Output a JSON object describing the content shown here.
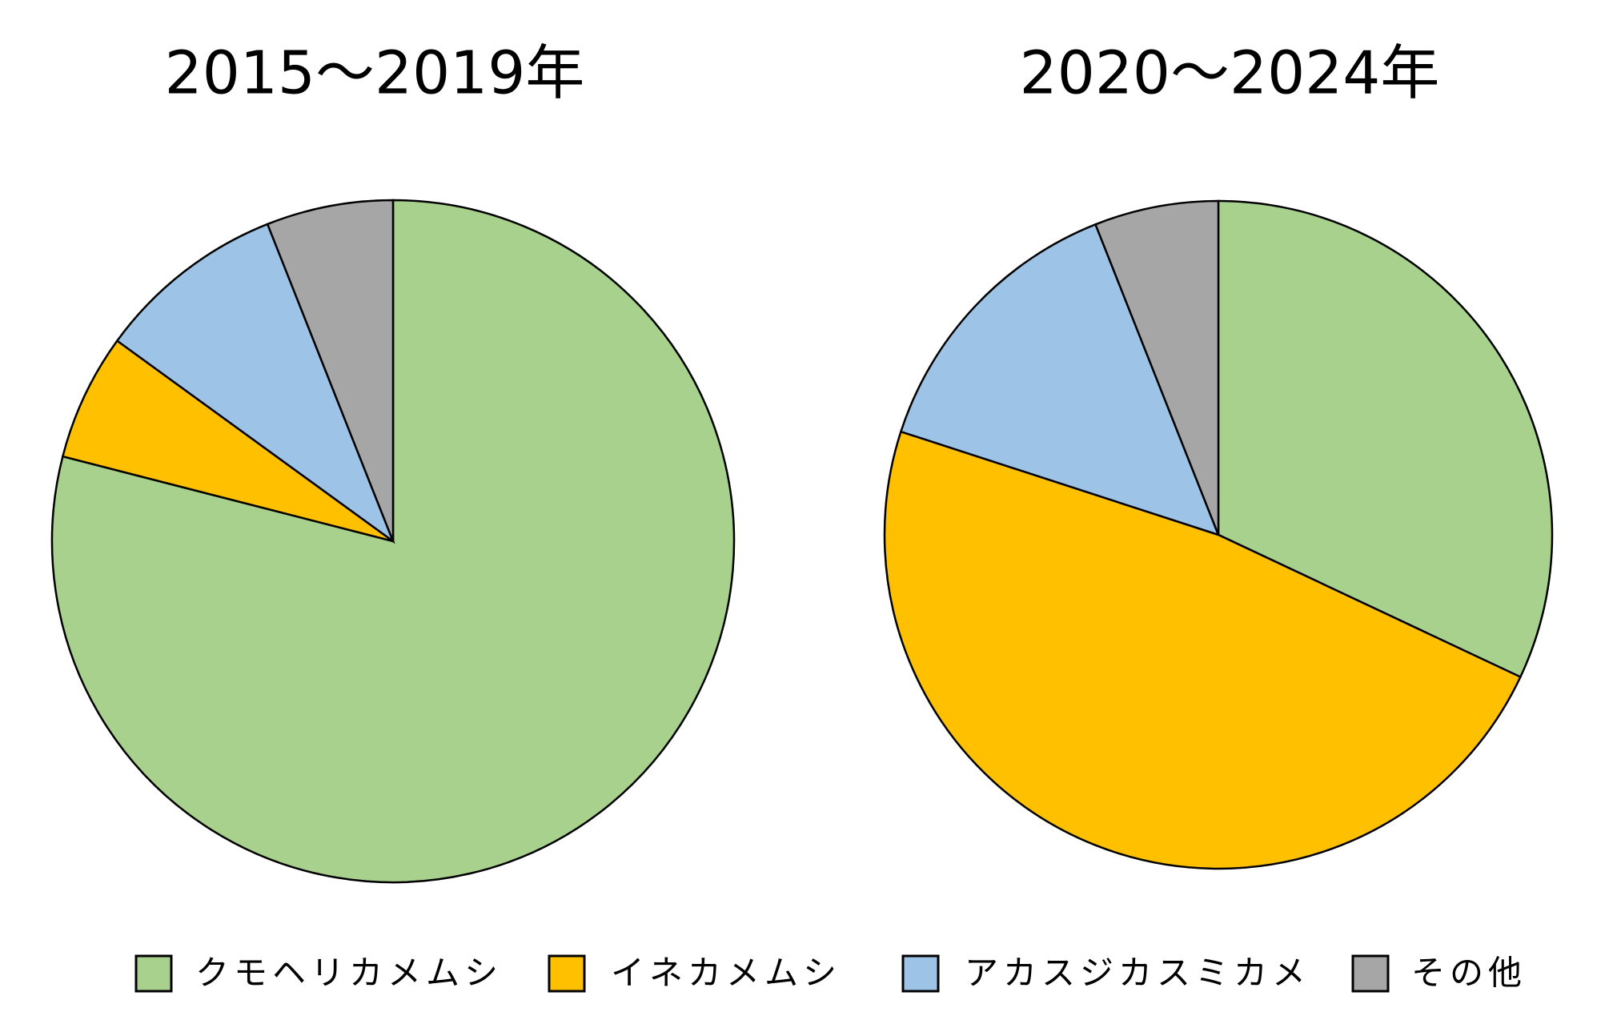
{
  "chart_data": [
    {
      "type": "pie",
      "title": "2015～2019年",
      "categories": [
        "クモヘリカメムシ",
        "イネカメムシ",
        "アカスジカスミカメ",
        "その他"
      ],
      "values": [
        79,
        6,
        9,
        6
      ],
      "colors": [
        "#a9d18e",
        "#ffc000",
        "#9dc3e6",
        "#a6a6a6"
      ]
    },
    {
      "type": "pie",
      "title": "2020～2024年",
      "categories": [
        "クモヘリカメムシ",
        "イネカメムシ",
        "アカスジカスミカメ",
        "その他"
      ],
      "values": [
        32,
        48,
        14,
        6
      ],
      "colors": [
        "#a9d18e",
        "#ffc000",
        "#9dc3e6",
        "#a6a6a6"
      ]
    }
  ]
}
